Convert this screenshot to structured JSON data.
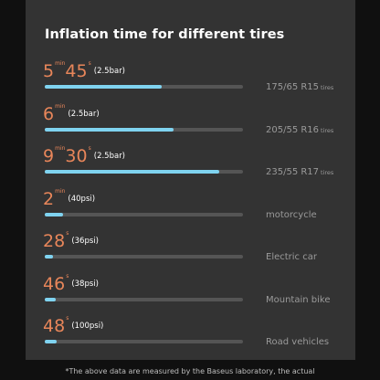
{
  "chart_data": {
    "type": "bar",
    "title": "Inflation time for different tires",
    "rows": [
      {
        "parts": [
          {
            "num": "5",
            "unit": "min"
          },
          {
            "num": "45",
            "unit": "s"
          }
        ],
        "note": "(2.5bar)",
        "tire": "175/65 R15",
        "suffix": "tires",
        "fraction": 0.59
      },
      {
        "parts": [
          {
            "num": "6",
            "unit": "min"
          }
        ],
        "note": "(2.5bar)",
        "tire": "205/55 R16",
        "suffix": "tires",
        "fraction": 0.65
      },
      {
        "parts": [
          {
            "num": "9",
            "unit": "min"
          },
          {
            "num": "30",
            "unit": "s"
          }
        ],
        "note": "(2.5bar)",
        "tire": "235/55 R17",
        "suffix": "tires",
        "fraction": 0.88
      },
      {
        "parts": [
          {
            "num": "2",
            "unit": "min"
          }
        ],
        "note": "(40psi)",
        "tire": "motorcycle",
        "suffix": "",
        "fraction": 0.09
      },
      {
        "parts": [
          {
            "num": "28",
            "unit": "s"
          }
        ],
        "note": "(36psi)",
        "tire": "Electric car",
        "suffix": "",
        "fraction": 0.04
      },
      {
        "parts": [
          {
            "num": "46",
            "unit": "s"
          }
        ],
        "note": "(38psi)",
        "tire": "Mountain bike",
        "suffix": "",
        "fraction": 0.055
      },
      {
        "parts": [
          {
            "num": "48",
            "unit": "s"
          }
        ],
        "note": "(100psi)",
        "tire": "Road vehicles",
        "suffix": "",
        "fraction": 0.06
      }
    ]
  },
  "footer": "*The above data are measured by the Baseus laboratory, the actual",
  "colors": {
    "background": "#101010",
    "card": "#333333",
    "accent": "#e8865a",
    "bar_fill": "#7fd3f0",
    "bar_track": "#555555",
    "tire_label": "#9a9a9a"
  }
}
